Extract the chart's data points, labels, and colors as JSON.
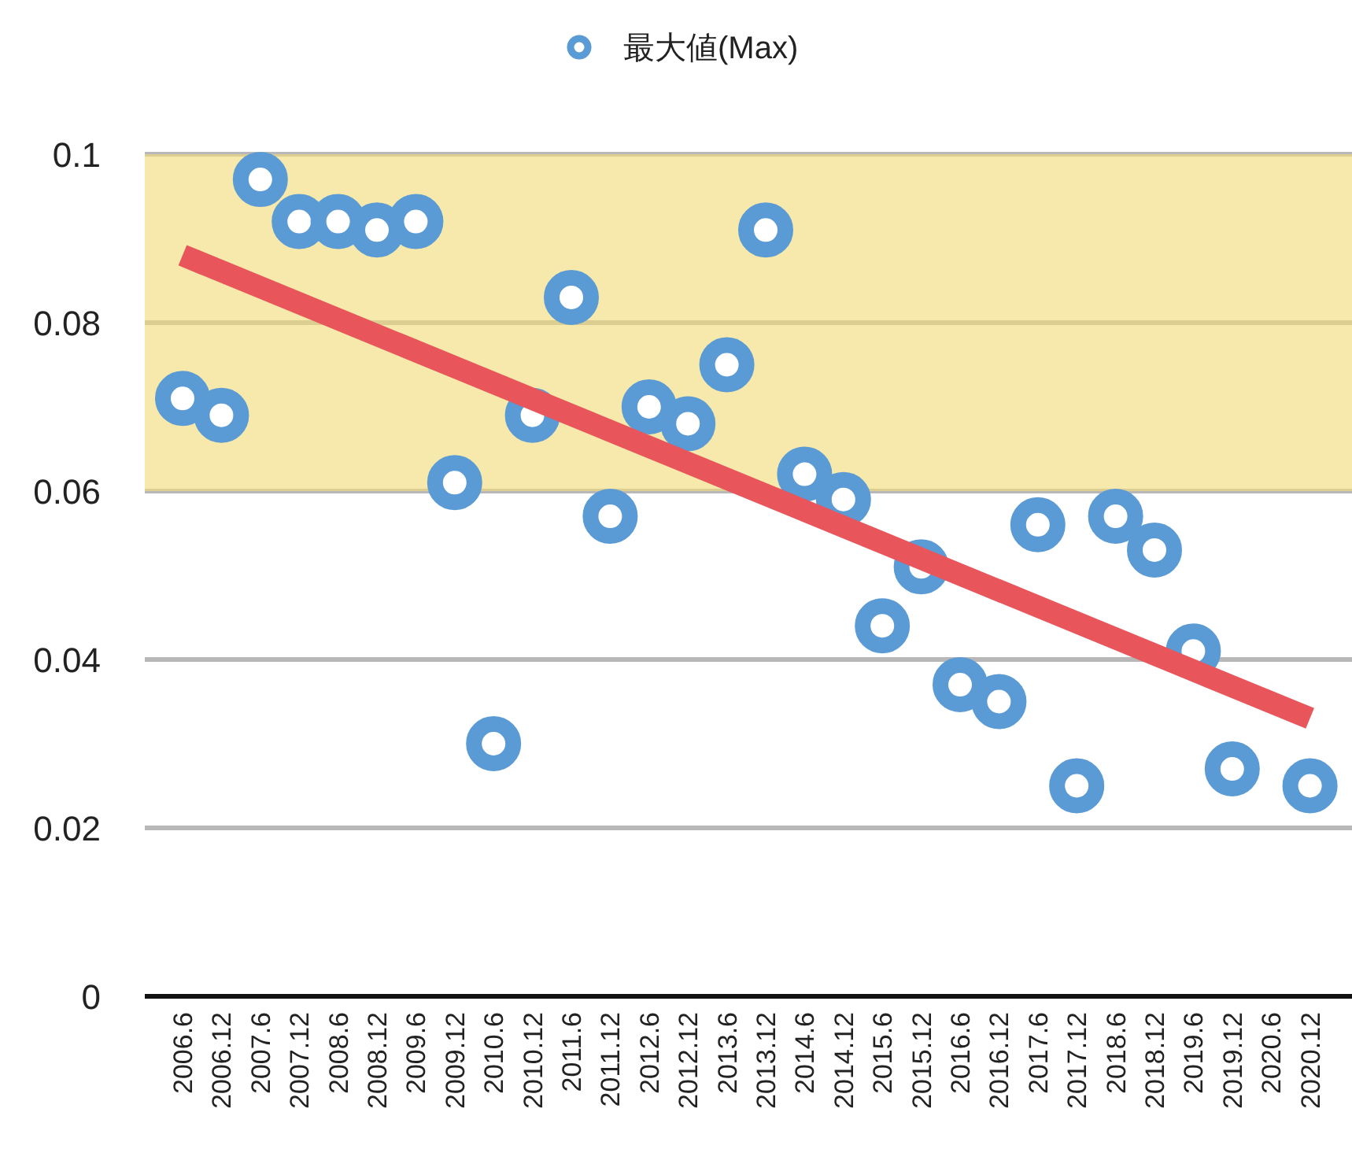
{
  "chart_data": {
    "type": "scatter",
    "categories": [
      "2006.6",
      "2006.12",
      "2007.6",
      "2007.12",
      "2008.6",
      "2008.12",
      "2009.6",
      "2009.12",
      "2010.6",
      "2010.12",
      "2011.6",
      "2011.12",
      "2012.6",
      "2012.12",
      "2013.6",
      "2013.12",
      "2014.6",
      "2014.12",
      "2015.6",
      "2015.12",
      "2016.6",
      "2016.12",
      "2017.6",
      "2017.12",
      "2018.6",
      "2018.12",
      "2019.6",
      "2019.12",
      "2020.6",
      "2020.12"
    ],
    "series": [
      {
        "name": "最大値(Max)",
        "color": "#5b9bd5",
        "values": [
          0.071,
          0.069,
          0.097,
          0.092,
          0.092,
          0.091,
          0.092,
          0.061,
          0.03,
          0.069,
          0.083,
          0.057,
          0.07,
          0.068,
          0.075,
          0.091,
          0.062,
          0.059,
          0.044,
          0.051,
          0.037,
          0.035,
          0.056,
          0.025,
          0.057,
          0.053,
          0.041,
          0.027,
          null,
          0.025
        ]
      },
      {
        "type": "line",
        "marker": "none",
        "color": "#e8555a",
        "x": [
          "2006.6",
          "2020.12"
        ],
        "values": [
          0.088,
          0.033
        ]
      }
    ],
    "ylim": [
      0,
      0.1
    ],
    "yticks": [
      0,
      0.02,
      0.04,
      0.06,
      0.08,
      0.1
    ],
    "grid": "y",
    "legend": "top",
    "marker": "circle",
    "bands": [
      {
        "axis": "y",
        "from": 0.06,
        "to": 0.1,
        "color": "#f0dc78"
      }
    ]
  }
}
